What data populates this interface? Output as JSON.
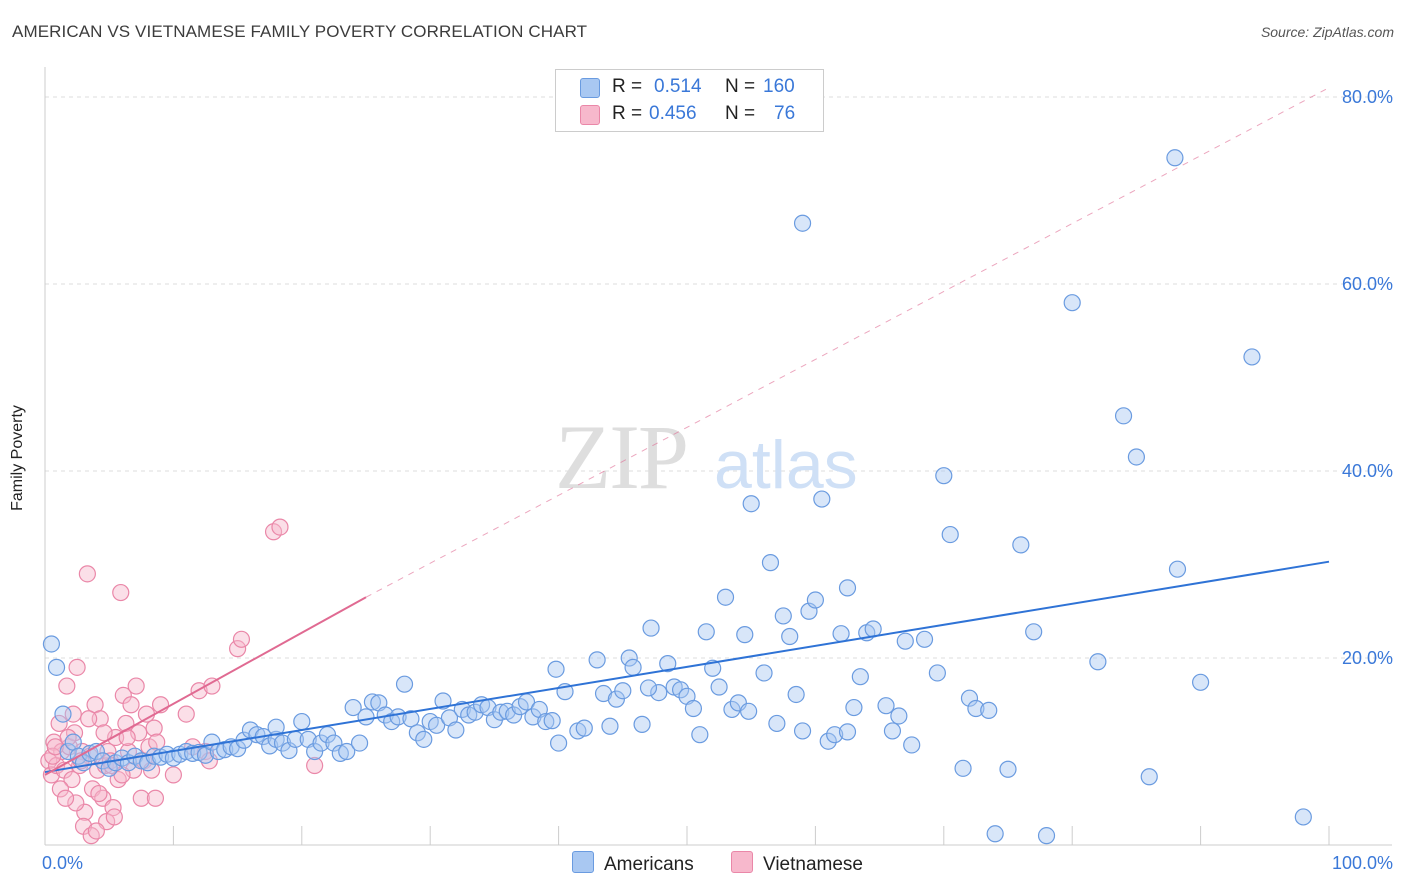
{
  "header": {
    "title": "AMERICAN VS VIETNAMESE FAMILY POVERTY CORRELATION CHART",
    "source": "Source: ZipAtlas.com"
  },
  "watermark": {
    "zip": "ZIP",
    "atlas": "atlas"
  },
  "legend": {
    "rows": [
      {
        "r_label": "R =",
        "r_value": "0.514",
        "n_label": "N =",
        "n_value": "160",
        "color": "#a9c8f2"
      },
      {
        "r_label": "R =",
        "r_value": "0.456",
        "n_label": "N =",
        "n_value": "76",
        "color": "#f7b8cc"
      }
    ]
  },
  "bottom_legend": [
    {
      "label": "Americans",
      "color": "#a9c8f2"
    },
    {
      "label": "Vietnamese",
      "color": "#f7b8cc"
    }
  ],
  "colors": {
    "americans_fill": "#a9c8f2",
    "americans_stroke": "#6a9be0",
    "americans_line": "#2f73d6",
    "vietnamese_fill": "#f7b8cc",
    "vietnamese_stroke": "#ea87a8",
    "vietnamese_line": "#e06a92",
    "tick_label": "#3a78d8",
    "grid": "#dddddd"
  },
  "chart_data": {
    "type": "scatter",
    "title": "AMERICAN VS VIETNAMESE FAMILY POVERTY CORRELATION CHART",
    "xlabel": "",
    "ylabel": "Family Poverty",
    "xlim": [
      0,
      100
    ],
    "ylim": [
      0,
      80
    ],
    "x_tick_labels": [
      "0.0%",
      "100.0%"
    ],
    "y_ticks": [
      20,
      40,
      60,
      80
    ],
    "y_tick_labels": [
      "20.0%",
      "40.0%",
      "60.0%",
      "80.0%"
    ],
    "grid": true,
    "legend_position": "top-center",
    "series": [
      {
        "name": "Americans",
        "r": 0.514,
        "n": 160,
        "trend": {
          "x": [
            0,
            100
          ],
          "y": [
            7.8,
            30.3
          ],
          "dashed": false
        },
        "points": [
          [
            0.5,
            21.5
          ],
          [
            0.9,
            19.0
          ],
          [
            1.4,
            14.0
          ],
          [
            1.8,
            10.0
          ],
          [
            2.2,
            11.0
          ],
          [
            2.6,
            9.5
          ],
          [
            3.0,
            8.8
          ],
          [
            3.5,
            9.8
          ],
          [
            4.0,
            10.0
          ],
          [
            4.5,
            9.0
          ],
          [
            5.0,
            8.2
          ],
          [
            5.5,
            8.8
          ],
          [
            6.0,
            9.3
          ],
          [
            6.5,
            8.8
          ],
          [
            7.0,
            9.5
          ],
          [
            7.5,
            9.0
          ],
          [
            8.0,
            8.8
          ],
          [
            8.5,
            9.5
          ],
          [
            9.0,
            9.4
          ],
          [
            9.5,
            9.7
          ],
          [
            10.0,
            9.3
          ],
          [
            10.5,
            9.7
          ],
          [
            11.0,
            10.0
          ],
          [
            11.5,
            9.8
          ],
          [
            12.0,
            9.9
          ],
          [
            12.5,
            9.6
          ],
          [
            13.0,
            11.0
          ],
          [
            13.5,
            10.0
          ],
          [
            14.0,
            10.2
          ],
          [
            14.5,
            10.5
          ],
          [
            15.0,
            10.3
          ],
          [
            15.5,
            11.2
          ],
          [
            16.0,
            12.3
          ],
          [
            16.5,
            11.8
          ],
          [
            17.0,
            11.6
          ],
          [
            17.5,
            10.6
          ],
          [
            18.0,
            11.3
          ],
          [
            18.5,
            10.9
          ],
          [
            19.0,
            10.1
          ],
          [
            19.5,
            11.3
          ],
          [
            20.0,
            13.2
          ],
          [
            20.5,
            11.3
          ],
          [
            21.0,
            10.0
          ],
          [
            21.5,
            10.9
          ],
          [
            22.0,
            11.8
          ],
          [
            22.5,
            10.9
          ],
          [
            23.0,
            9.8
          ],
          [
            23.5,
            10.0
          ],
          [
            24.0,
            14.7
          ],
          [
            24.5,
            10.9
          ],
          [
            25.0,
            13.7
          ],
          [
            25.5,
            15.3
          ],
          [
            26.0,
            15.2
          ],
          [
            26.5,
            13.9
          ],
          [
            27.0,
            13.2
          ],
          [
            27.5,
            13.7
          ],
          [
            28.0,
            17.2
          ],
          [
            28.5,
            13.5
          ],
          [
            29.0,
            12.0
          ],
          [
            29.5,
            11.3
          ],
          [
            30.0,
            13.2
          ],
          [
            30.5,
            12.8
          ],
          [
            31.0,
            15.4
          ],
          [
            31.5,
            13.6
          ],
          [
            32.0,
            12.3
          ],
          [
            32.5,
            14.5
          ],
          [
            33.0,
            13.9
          ],
          [
            33.5,
            14.2
          ],
          [
            34.0,
            15.0
          ],
          [
            34.5,
            14.7
          ],
          [
            35.0,
            13.4
          ],
          [
            35.5,
            14.2
          ],
          [
            36.0,
            14.3
          ],
          [
            36.5,
            13.9
          ],
          [
            37.0,
            14.8
          ],
          [
            37.5,
            15.3
          ],
          [
            38.0,
            13.7
          ],
          [
            38.5,
            14.5
          ],
          [
            39.0,
            13.2
          ],
          [
            39.5,
            13.3
          ],
          [
            40.0,
            10.9
          ],
          [
            40.5,
            16.4
          ],
          [
            41.5,
            12.2
          ],
          [
            42.0,
            12.5
          ],
          [
            43.0,
            19.8
          ],
          [
            43.5,
            16.2
          ],
          [
            44.0,
            12.7
          ],
          [
            44.5,
            15.6
          ],
          [
            45.0,
            16.5
          ],
          [
            45.5,
            20.0
          ],
          [
            45.8,
            19.0
          ],
          [
            46.5,
            12.9
          ],
          [
            47.2,
            23.2
          ],
          [
            47.8,
            16.3
          ],
          [
            48.5,
            19.4
          ],
          [
            49.0,
            16.9
          ],
          [
            49.5,
            16.6
          ],
          [
            50.0,
            15.9
          ],
          [
            50.5,
            14.6
          ],
          [
            51.0,
            11.8
          ],
          [
            51.5,
            22.8
          ],
          [
            52.0,
            18.9
          ],
          [
            52.5,
            16.9
          ],
          [
            53.0,
            26.5
          ],
          [
            53.5,
            14.5
          ],
          [
            54.0,
            15.2
          ],
          [
            54.5,
            22.5
          ],
          [
            55.0,
            36.5
          ],
          [
            56.0,
            18.4
          ],
          [
            56.5,
            30.2
          ],
          [
            57.0,
            13.0
          ],
          [
            57.5,
            24.5
          ],
          [
            58.0,
            22.3
          ],
          [
            58.5,
            16.1
          ],
          [
            59.0,
            12.2
          ],
          [
            59.5,
            25.0
          ],
          [
            60.0,
            26.2
          ],
          [
            60.5,
            37.0
          ],
          [
            61.0,
            11.1
          ],
          [
            61.5,
            11.8
          ],
          [
            62.0,
            22.6
          ],
          [
            62.5,
            12.1
          ],
          [
            63.0,
            14.7
          ],
          [
            63.5,
            18.0
          ],
          [
            64.0,
            22.7
          ],
          [
            64.5,
            23.1
          ],
          [
            65.5,
            14.9
          ],
          [
            66.0,
            12.2
          ],
          [
            66.5,
            13.8
          ],
          [
            67.0,
            21.8
          ],
          [
            67.5,
            10.7
          ],
          [
            68.5,
            22.0
          ],
          [
            69.5,
            18.4
          ],
          [
            70.0,
            39.5
          ],
          [
            70.5,
            33.2
          ],
          [
            71.5,
            8.2
          ],
          [
            72.0,
            15.7
          ],
          [
            72.5,
            14.6
          ],
          [
            73.5,
            14.4
          ],
          [
            74.0,
            1.2
          ],
          [
            75.0,
            8.1
          ],
          [
            76.0,
            32.1
          ],
          [
            77.0,
            22.8
          ],
          [
            78.0,
            1.0
          ],
          [
            80.0,
            58.0
          ],
          [
            82.0,
            19.6
          ],
          [
            84.0,
            45.9
          ],
          [
            85.0,
            41.5
          ],
          [
            86.0,
            7.3
          ],
          [
            88.0,
            73.5
          ],
          [
            90.0,
            17.4
          ],
          [
            94.0,
            52.2
          ],
          [
            98.0,
            3.0
          ],
          [
            59.0,
            66.5
          ],
          [
            54.8,
            14.3
          ],
          [
            39.8,
            18.8
          ],
          [
            18.0,
            12.6
          ],
          [
            47.0,
            16.8
          ],
          [
            62.5,
            27.5
          ],
          [
            88.2,
            29.5
          ]
        ]
      },
      {
        "name": "Vietnamese",
        "r": 0.456,
        "n": 76,
        "trend": {
          "x": [
            0,
            25
          ],
          "y": [
            7.5,
            26.5
          ],
          "extended_to": [
            100,
            81.0
          ],
          "dashed_extension": true
        },
        "points": [
          [
            0.3,
            9.0
          ],
          [
            0.5,
            7.5
          ],
          [
            0.7,
            11.0
          ],
          [
            0.9,
            8.5
          ],
          [
            1.1,
            13.0
          ],
          [
            1.3,
            10.0
          ],
          [
            1.5,
            8.0
          ],
          [
            1.7,
            17.0
          ],
          [
            1.9,
            10.5
          ],
          [
            2.1,
            7.0
          ],
          [
            2.3,
            12.0
          ],
          [
            2.5,
            19.0
          ],
          [
            2.7,
            8.5
          ],
          [
            2.9,
            10.0
          ],
          [
            3.1,
            3.5
          ],
          [
            3.3,
            29.0
          ],
          [
            3.5,
            9.5
          ],
          [
            3.7,
            6.0
          ],
          [
            3.9,
            15.0
          ],
          [
            4.1,
            8.0
          ],
          [
            4.3,
            13.5
          ],
          [
            4.5,
            5.0
          ],
          [
            4.7,
            8.5
          ],
          [
            4.9,
            10.0
          ],
          [
            5.1,
            9.0
          ],
          [
            5.3,
            4.0
          ],
          [
            5.5,
            11.5
          ],
          [
            5.7,
            7.0
          ],
          [
            5.9,
            27.0
          ],
          [
            6.1,
            16.0
          ],
          [
            6.3,
            13.0
          ],
          [
            6.5,
            10.0
          ],
          [
            6.7,
            15.0
          ],
          [
            6.9,
            8.0
          ],
          [
            7.1,
            17.0
          ],
          [
            7.3,
            12.0
          ],
          [
            7.5,
            5.0
          ],
          [
            7.7,
            9.0
          ],
          [
            7.9,
            14.0
          ],
          [
            8.1,
            10.5
          ],
          [
            8.3,
            8.0
          ],
          [
            8.5,
            12.5
          ],
          [
            8.7,
            11.0
          ],
          [
            9.0,
            15.0
          ],
          [
            10.0,
            7.5
          ],
          [
            11.0,
            14.0
          ],
          [
            11.5,
            10.5
          ],
          [
            12.0,
            16.5
          ],
          [
            12.5,
            10.0
          ],
          [
            12.8,
            9.0
          ],
          [
            13.0,
            17.0
          ],
          [
            15.0,
            21.0
          ],
          [
            15.3,
            22.0
          ],
          [
            17.8,
            33.5
          ],
          [
            18.3,
            34.0
          ],
          [
            21.0,
            8.5
          ],
          [
            0.6,
            9.5
          ],
          [
            1.2,
            6.0
          ],
          [
            1.8,
            11.5
          ],
          [
            2.4,
            4.5
          ],
          [
            3.0,
            2.0
          ],
          [
            3.6,
            1.0
          ],
          [
            4.2,
            5.5
          ],
          [
            4.8,
            2.5
          ],
          [
            5.4,
            3.0
          ],
          [
            6.0,
            7.5
          ],
          [
            0.8,
            10.5
          ],
          [
            1.6,
            5.0
          ],
          [
            2.2,
            14.0
          ],
          [
            2.8,
            9.0
          ],
          [
            3.4,
            13.5
          ],
          [
            4.0,
            1.5
          ],
          [
            4.6,
            12.0
          ],
          [
            5.2,
            8.5
          ],
          [
            6.4,
            11.5
          ],
          [
            8.6,
            5.0
          ]
        ]
      }
    ]
  }
}
